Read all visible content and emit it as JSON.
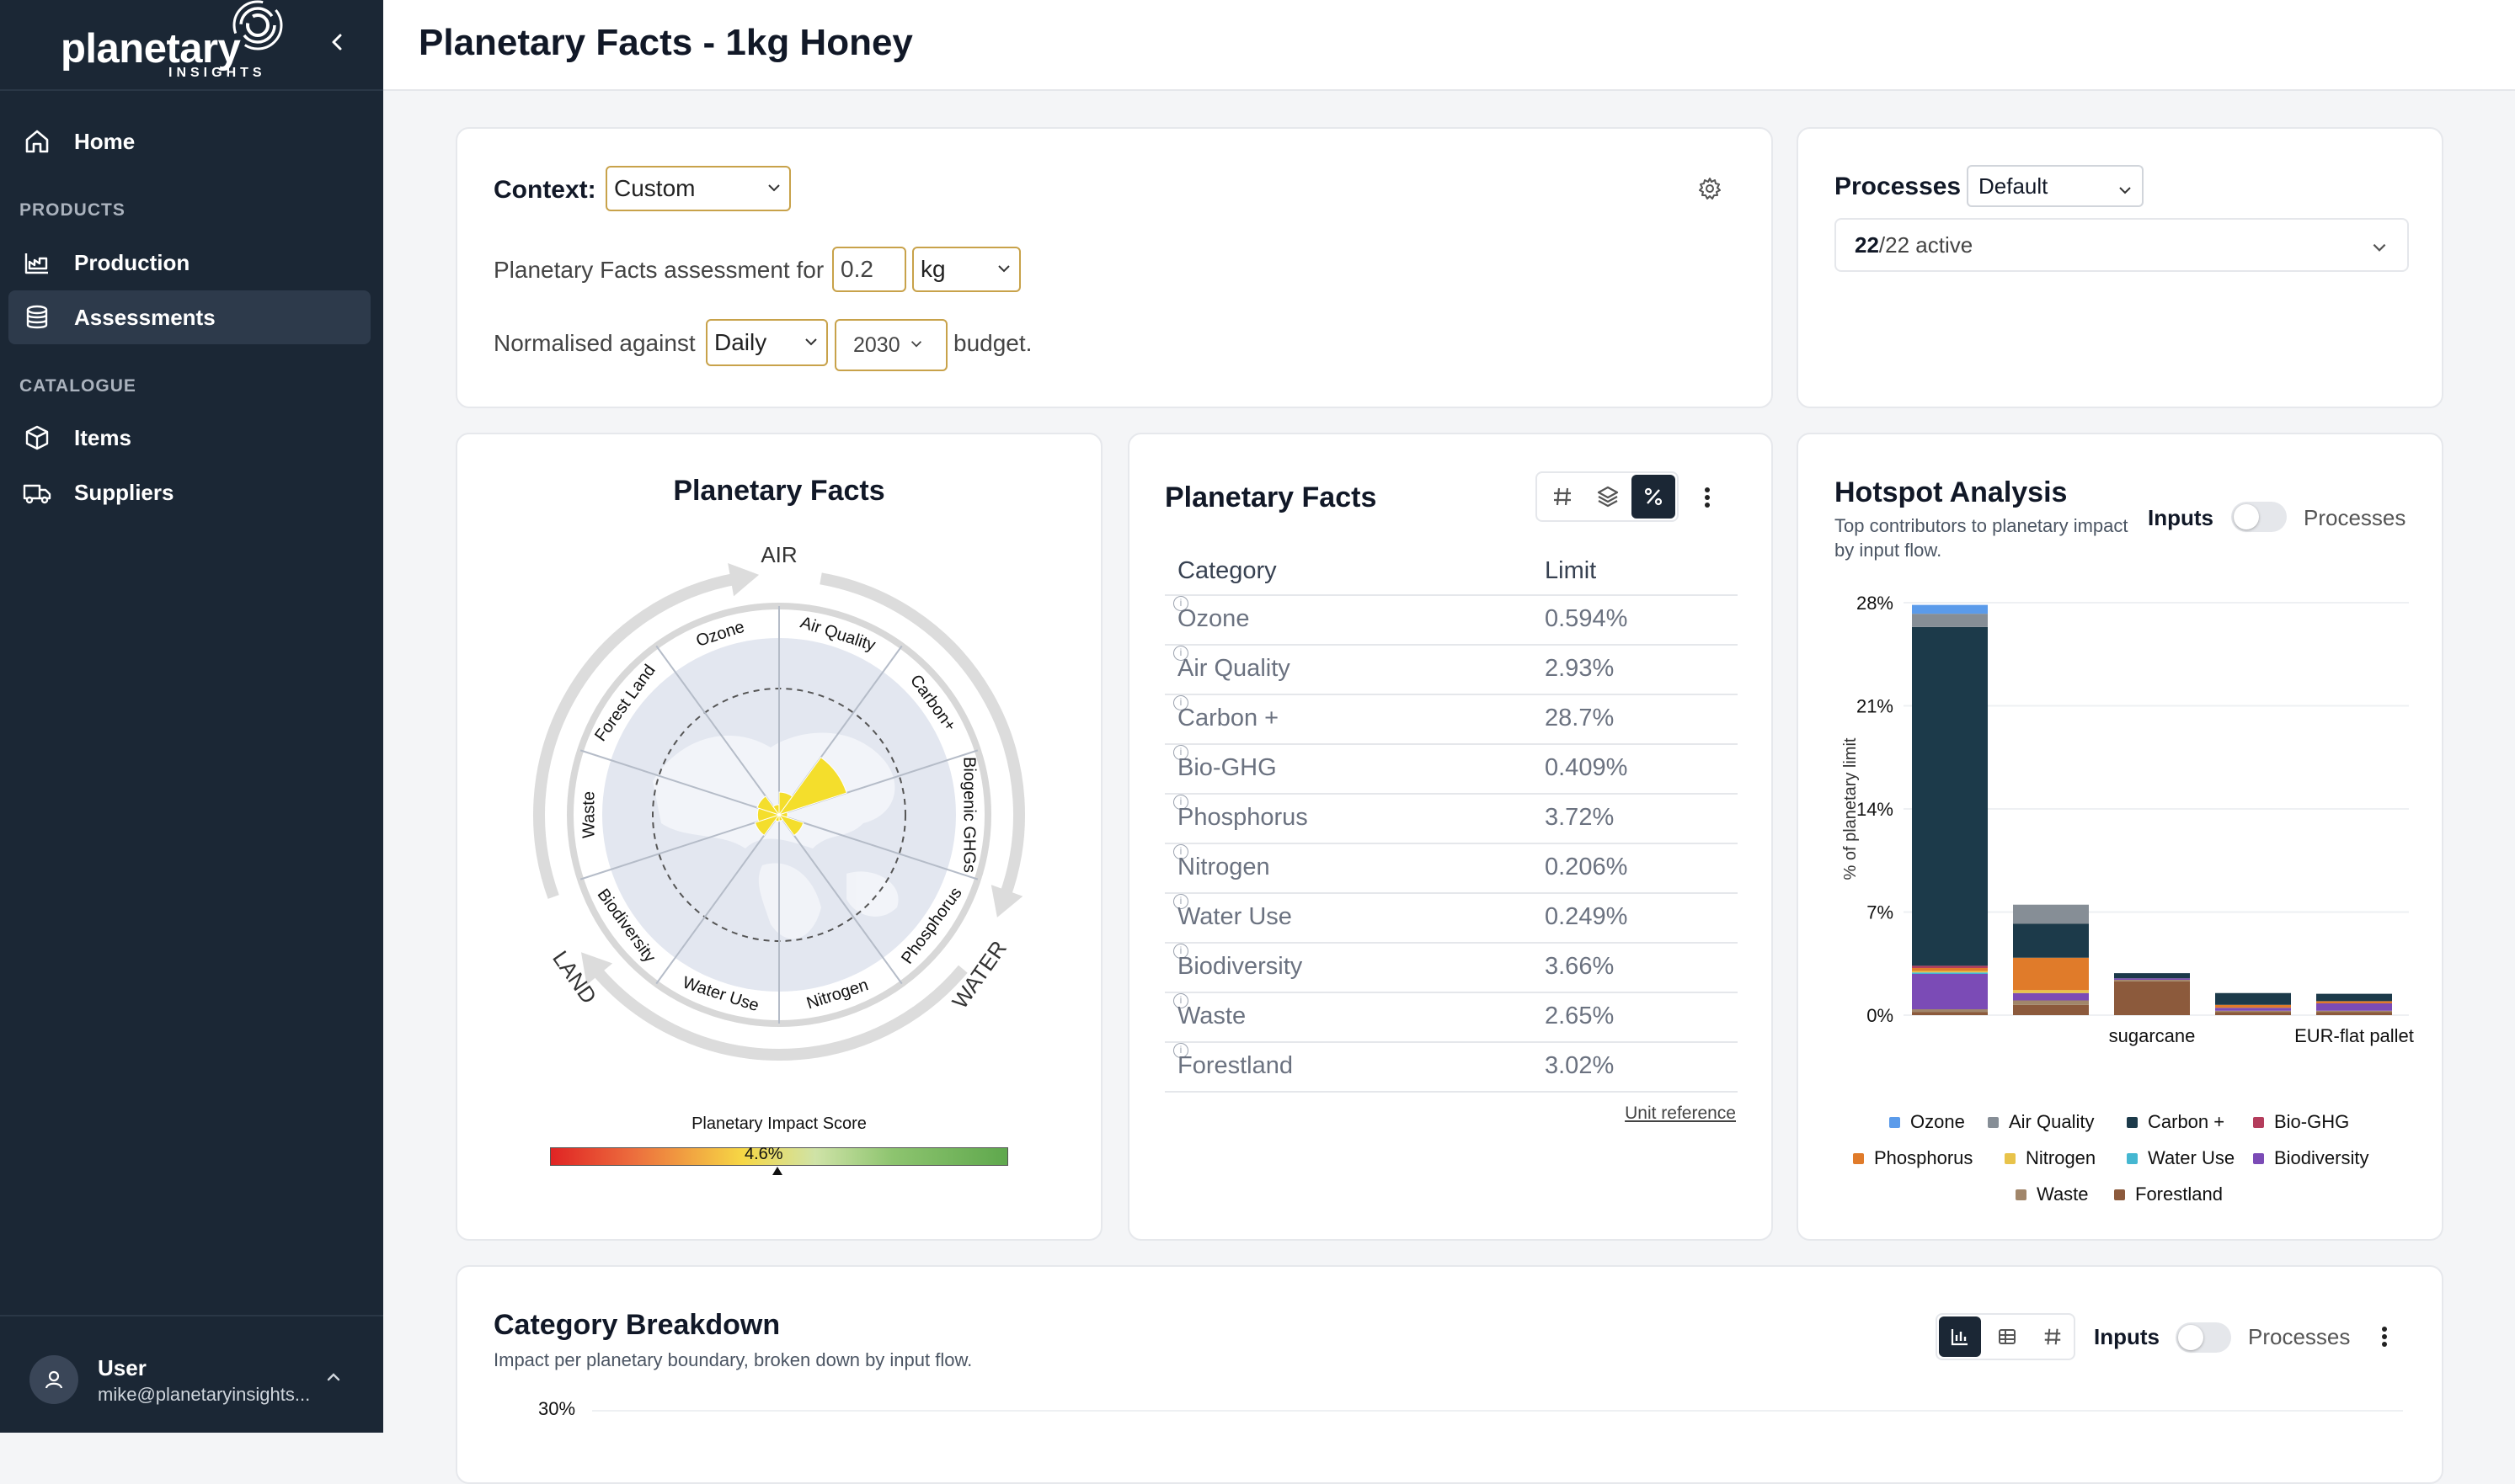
{
  "brand": {
    "word": "planetary",
    "sub": "INSIGHTS"
  },
  "sidebar": {
    "home": "Home",
    "section_products": "PRODUCTS",
    "production": "Production",
    "assessments": "Assessments",
    "section_catalogue": "CATALOGUE",
    "items": "Items",
    "suppliers": "Suppliers",
    "user_name": "User",
    "user_email": "mike@planetaryinsights..."
  },
  "page": {
    "title": "Planetary Facts - 1kg Honey"
  },
  "context": {
    "label": "Context:",
    "value": "Custom",
    "assessment_prefix": "Planetary Facts assessment for",
    "amount": "0.2",
    "unit": "kg",
    "normalised_prefix": "Normalised against",
    "period": "Daily",
    "year": "2030",
    "suffix": "budget."
  },
  "processes": {
    "label": "Processes",
    "value": "Default",
    "active_count": "22",
    "active_total": "/22 active"
  },
  "radial": {
    "title": "Planetary Facts",
    "regions": [
      "AIR",
      "WATER",
      "LAND"
    ],
    "categories": [
      "Air Quality",
      "Carbon+",
      "Biogenic GHGs",
      "Phosphorus",
      "Nitrogen",
      "Water Use",
      "Biodiversity",
      "Waste",
      "Forest Land",
      "Ozone"
    ],
    "score_label": "Planetary Impact Score",
    "score_value": "4.6%",
    "score_fraction": 0.046
  },
  "facts_table": {
    "title": "Planetary Facts",
    "col_category": "Category",
    "col_limit": "Limit",
    "rows": [
      {
        "category": "Ozone",
        "limit": "0.594%"
      },
      {
        "category": "Air Quality",
        "limit": "2.93%"
      },
      {
        "category": "Carbon +",
        "limit": "28.7%"
      },
      {
        "category": "Bio-GHG",
        "limit": "0.409%"
      },
      {
        "category": "Phosphorus",
        "limit": "3.72%"
      },
      {
        "category": "Nitrogen",
        "limit": "0.206%"
      },
      {
        "category": "Water Use",
        "limit": "0.249%"
      },
      {
        "category": "Biodiversity",
        "limit": "3.66%"
      },
      {
        "category": "Waste",
        "limit": "2.65%"
      },
      {
        "category": "Forestland",
        "limit": "3.02%"
      }
    ],
    "unit_reference": "Unit reference"
  },
  "hotspot": {
    "title": "Hotspot Analysis",
    "subtitle_1": "Top contributors to planetary impact",
    "subtitle_2": "by input flow.",
    "toggle_left": "Inputs",
    "toggle_right": "Processes"
  },
  "chart_data": {
    "type": "bar",
    "stacked": true,
    "ylabel": "% of planetary limit",
    "yticks": [
      "0%",
      "7%",
      "14%",
      "21%",
      "28%"
    ],
    "ylim": [
      0,
      28
    ],
    "categories": [
      "",
      "",
      "sugarcane",
      "",
      "EUR-flat pallet"
    ],
    "series": [
      {
        "name": "Ozone",
        "color": "#5b9bea",
        "values": [
          0.6,
          0,
          0,
          0,
          0
        ]
      },
      {
        "name": "Air Quality",
        "color": "#868e96",
        "values": [
          0.9,
          1.3,
          0,
          0,
          0
        ]
      },
      {
        "name": "Carbon +",
        "color": "#1c3a4a",
        "values": [
          23.0,
          2.3,
          0.35,
          0.8,
          0.5
        ]
      },
      {
        "name": "Bio-GHG",
        "color": "#b43d5c",
        "values": [
          0.15,
          0,
          0,
          0,
          0
        ]
      },
      {
        "name": "Phosphorus",
        "color": "#e07b2a",
        "values": [
          0.2,
          2.2,
          0,
          0.2,
          0.15
        ]
      },
      {
        "name": "Nitrogen",
        "color": "#e8c34a",
        "values": [
          0.1,
          0.2,
          0,
          0,
          0
        ]
      },
      {
        "name": "Water Use",
        "color": "#45b7d1",
        "values": [
          0.1,
          0,
          0,
          0,
          0
        ]
      },
      {
        "name": "Biodiversity",
        "color": "#7b4bb6",
        "values": [
          2.4,
          0.5,
          0.1,
          0.2,
          0.5
        ]
      },
      {
        "name": "Waste",
        "color": "#a1866a",
        "values": [
          0.2,
          0.3,
          0.1,
          0.1,
          0.1
        ]
      },
      {
        "name": "Forestland",
        "color": "#8c5a3c",
        "values": [
          0.2,
          0.7,
          2.3,
          0.2,
          0.2
        ]
      }
    ]
  },
  "breakdown": {
    "title": "Category Breakdown",
    "subtitle": "Impact per planetary boundary, broken down by input flow.",
    "toggle_left": "Inputs",
    "toggle_right": "Processes",
    "y_top": "30%"
  }
}
